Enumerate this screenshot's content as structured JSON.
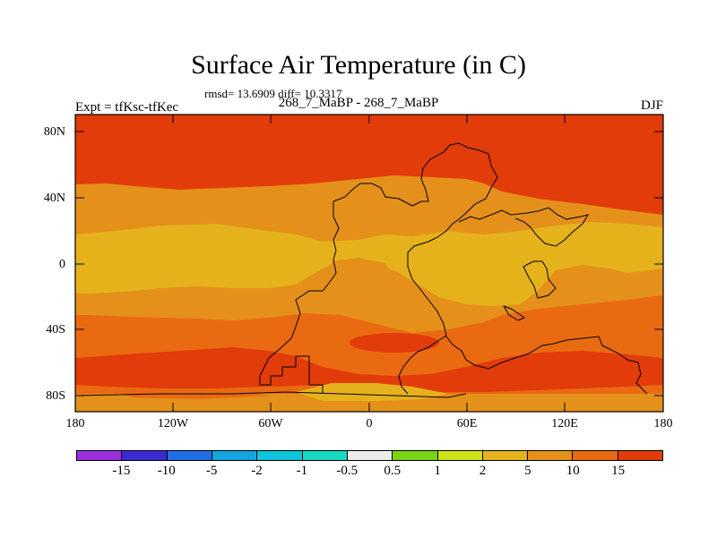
{
  "title": "Surface Air Temperature (in C)",
  "stats": "rmsd= 13.6909 diff= 10.3317",
  "subtitle": "268_7_MaBP - 268_7_MaBP",
  "expt": "Expt = tfKsc-tfKec",
  "season": "DJF",
  "map": {
    "lat_labels": [
      "80N",
      "40N",
      "0",
      "40S",
      "80S"
    ],
    "lon_labels": [
      "180",
      "120W",
      "60W",
      "0",
      "60E",
      "120E",
      "180"
    ],
    "fill_colors": {
      "c15": "#e13c0a",
      "c10": "#ea6a12",
      "c5": "#e4901a",
      "c2": "#e6b21c"
    }
  },
  "colorbar": {
    "colors": [
      "#9b2fe0",
      "#3a2bd0",
      "#1f6ee6",
      "#14a4e0",
      "#0fc4dc",
      "#17d8c0",
      "#ececec",
      "#7ad414",
      "#cfe018",
      "#e6b21c",
      "#e4901a",
      "#ea6a12",
      "#e13c0a"
    ],
    "labels": [
      "-15",
      "-10",
      "-5",
      "-2",
      "-1",
      "-0.5",
      "0.5",
      "1",
      "2",
      "5",
      "10",
      "15"
    ]
  }
}
